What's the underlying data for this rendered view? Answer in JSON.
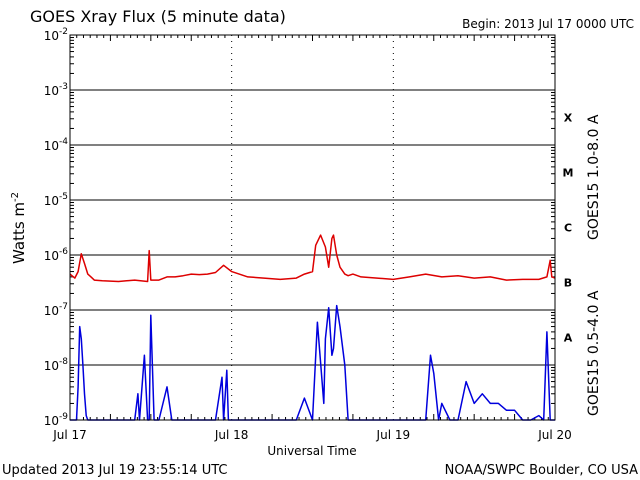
{
  "chart_data": {
    "type": "line",
    "title": "GOES Xray Flux (5 minute data)",
    "begin_label": "Begin:  2013 Jul 17 0000 UTC",
    "xlabel": "Universal Time",
    "ylabel": "Watts m",
    "ylabel_sup": "-2",
    "y_scale": "log",
    "ylim": [
      1e-09,
      0.01
    ],
    "y_ticks": [
      {
        "base": "10",
        "exp": "-2"
      },
      {
        "base": "10",
        "exp": "-3"
      },
      {
        "base": "10",
        "exp": "-4"
      },
      {
        "base": "10",
        "exp": "-5"
      },
      {
        "base": "10",
        "exp": "-6"
      },
      {
        "base": "10",
        "exp": "-7"
      },
      {
        "base": "10",
        "exp": "-8"
      },
      {
        "base": "10",
        "exp": "-9"
      }
    ],
    "x_unit": "days since Jul 17 00:00 UTC",
    "xlim": [
      0,
      3
    ],
    "x_ticks": [
      {
        "label": "Jul 17",
        "x": 0
      },
      {
        "label": "Jul 18",
        "x": 1
      },
      {
        "label": "Jul 19",
        "x": 2
      },
      {
        "label": "Jul 20",
        "x": 3
      }
    ],
    "flare_classes": [
      {
        "label": "X",
        "exp": -3.5
      },
      {
        "label": "M",
        "exp": -4.5
      },
      {
        "label": "C",
        "exp": -5.5
      },
      {
        "label": "B",
        "exp": -6.5
      },
      {
        "label": "A",
        "exp": -7.5
      }
    ],
    "series": [
      {
        "name": "GOES15 1.0-8.0 A",
        "color": "#dd0000",
        "x": [
          0,
          0.03,
          0.05,
          0.07,
          0.09,
          0.11,
          0.13,
          0.15,
          0.2,
          0.3,
          0.4,
          0.48,
          0.49,
          0.5,
          0.55,
          0.6,
          0.65,
          0.7,
          0.75,
          0.8,
          0.85,
          0.9,
          0.95,
          1.0,
          1.1,
          1.2,
          1.3,
          1.4,
          1.45,
          1.5,
          1.52,
          1.55,
          1.58,
          1.6,
          1.62,
          1.63,
          1.65,
          1.67,
          1.7,
          1.72,
          1.75,
          1.8,
          1.9,
          2.0,
          2.1,
          2.2,
          2.3,
          2.4,
          2.5,
          2.6,
          2.7,
          2.8,
          2.9,
          2.95,
          2.97,
          2.98,
          3.0
        ],
        "y": [
          4.5e-07,
          3.8e-07,
          5e-07,
          1.05e-06,
          7e-07,
          4.5e-07,
          4e-07,
          3.5e-07,
          3.4e-07,
          3.3e-07,
          3.5e-07,
          3.3e-07,
          1.2e-06,
          3.5e-07,
          3.5e-07,
          4e-07,
          4e-07,
          4.2e-07,
          4.5e-07,
          4.4e-07,
          4.5e-07,
          4.8e-07,
          6.5e-07,
          5e-07,
          4e-07,
          3.8e-07,
          3.6e-07,
          3.8e-07,
          4.5e-07,
          5e-07,
          1.5e-06,
          2.3e-06,
          1.4e-06,
          6e-07,
          2e-06,
          2.3e-06,
          1e-06,
          6e-07,
          4.5e-07,
          4.2e-07,
          4.5e-07,
          4e-07,
          3.8e-07,
          3.6e-07,
          4e-07,
          4.5e-07,
          4e-07,
          4.2e-07,
          3.8e-07,
          4e-07,
          3.5e-07,
          3.6e-07,
          3.6e-07,
          4e-07,
          8e-07,
          4e-07,
          3.8e-07
        ]
      },
      {
        "name": "GOES15 0.5-4.0 A",
        "color": "#0000dd",
        "x": [
          0,
          0.02,
          0.04,
          0.05,
          0.06,
          0.07,
          0.08,
          0.09,
          0.1,
          0.11,
          0.12,
          0.13,
          0.2,
          0.3,
          0.4,
          0.42,
          0.43,
          0.46,
          0.48,
          0.49,
          0.5,
          0.52,
          0.55,
          0.6,
          0.63,
          0.64,
          0.65,
          0.7,
          0.8,
          0.9,
          0.94,
          0.95,
          0.97,
          0.98,
          1.0,
          1.05,
          1.2,
          1.3,
          1.4,
          1.45,
          1.5,
          1.53,
          1.55,
          1.57,
          1.58,
          1.6,
          1.62,
          1.63,
          1.65,
          1.67,
          1.7,
          1.72,
          1.75,
          1.8,
          1.85,
          1.9,
          1.95,
          2.0,
          2.1,
          2.2,
          2.23,
          2.25,
          2.28,
          2.3,
          2.35,
          2.4,
          2.45,
          2.5,
          2.55,
          2.6,
          2.65,
          2.7,
          2.75,
          2.8,
          2.85,
          2.9,
          2.93,
          2.95,
          2.97,
          2.98,
          3.0
        ],
        "y": [
          1e-09,
          1e-09,
          1e-09,
          4e-09,
          5e-08,
          3e-08,
          1e-08,
          3e-09,
          1.2e-09,
          1e-09,
          1e-09,
          1e-09,
          1e-09,
          1e-09,
          1e-09,
          3e-09,
          1e-09,
          1.5e-08,
          1e-09,
          1e-09,
          8e-08,
          1e-09,
          1e-09,
          4e-09,
          1e-09,
          1e-09,
          1e-09,
          1e-09,
          1e-09,
          1e-09,
          6e-09,
          1e-09,
          8e-09,
          1e-09,
          1e-09,
          1e-09,
          1e-09,
          1e-09,
          1e-09,
          2.5e-09,
          1e-09,
          6e-08,
          1.1e-08,
          2e-09,
          3e-08,
          1.1e-07,
          1.5e-08,
          2e-08,
          1.2e-07,
          5e-08,
          1e-08,
          1e-09,
          1e-09,
          1e-09,
          1e-09,
          1e-09,
          1e-09,
          1e-09,
          1e-09,
          1e-09,
          1.5e-08,
          7e-09,
          1e-09,
          2e-09,
          1e-09,
          1e-09,
          5e-09,
          2e-09,
          3e-09,
          2e-09,
          2e-09,
          1.5e-09,
          1.5e-09,
          1e-09,
          1e-09,
          1.2e-09,
          1e-09,
          4e-08,
          1e-09,
          1e-09,
          1e-09
        ]
      }
    ],
    "footer_left": "Updated 2013 Jul 19 23:55:14 UTC",
    "footer_right": "NOAA/SWPC Boulder, CO USA"
  }
}
